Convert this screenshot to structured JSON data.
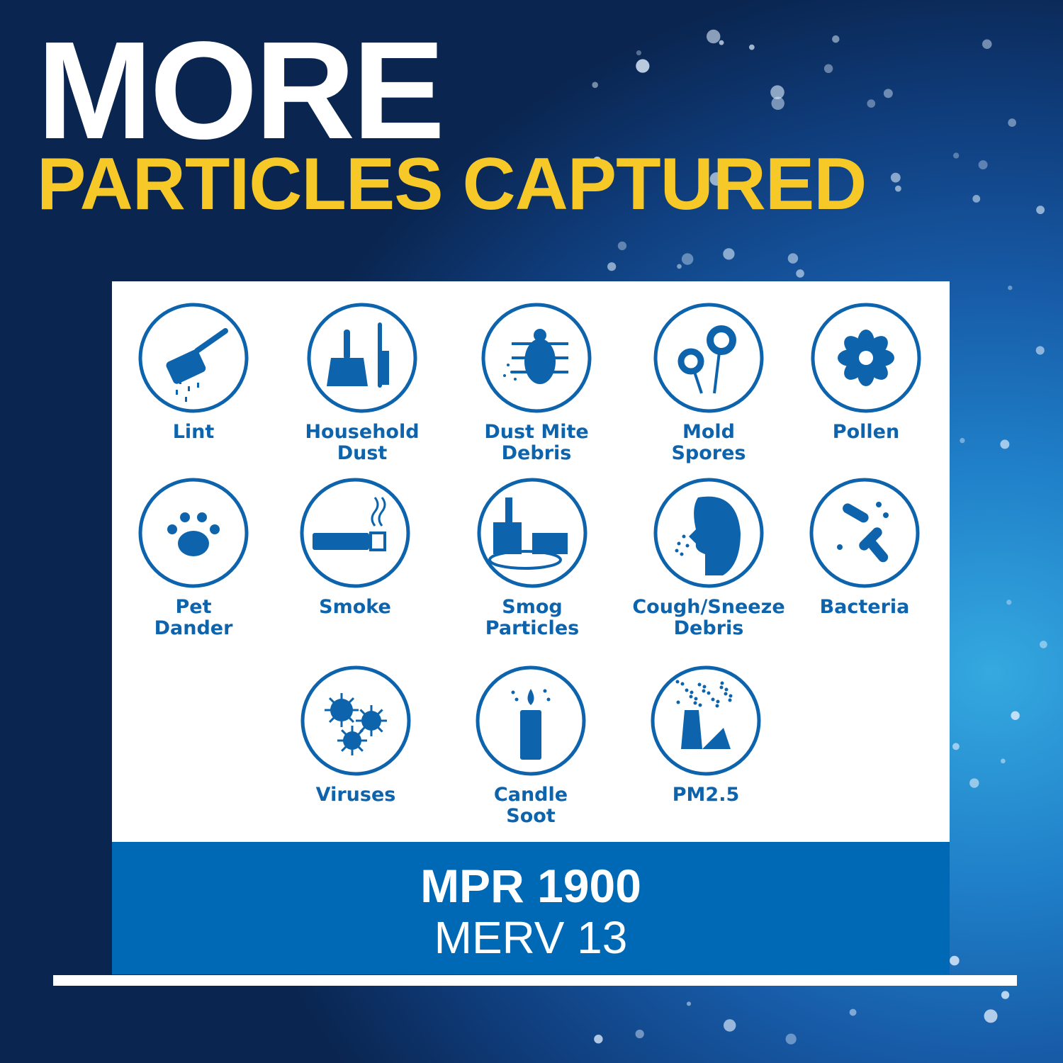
{
  "headline": {
    "line1": "MORE",
    "line2": "PARTICLES CAPTURED"
  },
  "colors": {
    "icon": "#0d64ad",
    "headline_accent": "#f6c928",
    "band": "#0069b5"
  },
  "particles": [
    {
      "icon": "lint-roller-icon",
      "label": [
        "Lint"
      ]
    },
    {
      "icon": "dustpan-brush-icon",
      "label": [
        "Household",
        "Dust"
      ]
    },
    {
      "icon": "dust-mite-icon",
      "label": [
        "Dust Mite",
        "Debris"
      ]
    },
    {
      "icon": "flowers-icon",
      "label": [
        "Mold",
        "Spores"
      ]
    },
    {
      "icon": "pollen-flower-icon",
      "label": [
        "Pollen"
      ]
    },
    {
      "icon": "paw-print-icon",
      "label": [
        "Pet",
        "Dander"
      ]
    },
    {
      "icon": "cigarette-icon",
      "label": [
        "Smoke"
      ]
    },
    {
      "icon": "smog-city-icon",
      "label": [
        "Smog",
        "Particles"
      ]
    },
    {
      "icon": "sneeze-face-icon",
      "label": [
        "Cough/Sneeze",
        "Debris"
      ]
    },
    {
      "icon": "bacteria-icon",
      "label": [
        "Bacteria"
      ]
    },
    {
      "icon": "virus-icon",
      "label": [
        "Viruses"
      ]
    },
    {
      "icon": "candle-icon",
      "label": [
        "Candle",
        "Soot"
      ]
    },
    {
      "icon": "smokestack-icon",
      "label": [
        "PM2.5"
      ]
    }
  ],
  "rating": {
    "mpr": "MPR 1900",
    "merv": "MERV 13"
  }
}
